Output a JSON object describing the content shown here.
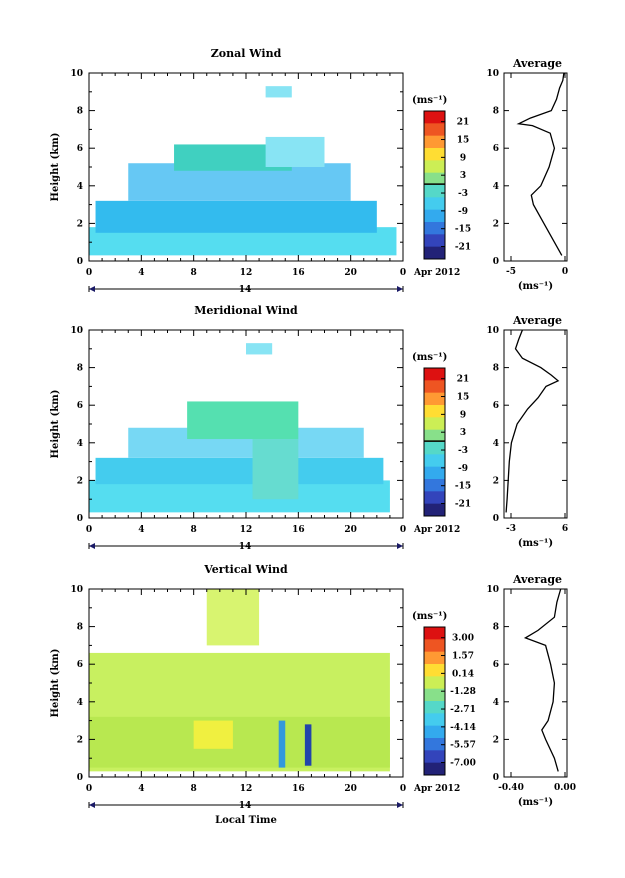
{
  "chart_data": [
    {
      "type": "heatmap",
      "title": "Zonal Wind",
      "ylabel": "Height (km)",
      "xlabel": "",
      "xticks": [
        "0",
        "4",
        "8",
        "12",
        "16",
        "20",
        "0"
      ],
      "yticks": [
        "0",
        "2",
        "4",
        "6",
        "8",
        "10"
      ],
      "xlim": [
        0,
        24
      ],
      "ylim": [
        0,
        10
      ],
      "date_label": "14",
      "date_right": "Apr 2012",
      "colorbar": {
        "unit": "(ms⁻¹)",
        "ticks": [
          "21",
          "15",
          "9",
          "3",
          "-3",
          "-9",
          "-15",
          "-21"
        ],
        "zero_line_index": 4
      },
      "fields": [
        {
          "x0": 0,
          "x1": 23.5,
          "y0": 0.3,
          "y1": 1.8,
          "color": "#55ddf0"
        },
        {
          "x0": 0.5,
          "x1": 22,
          "y0": 1.5,
          "y1": 3.2,
          "color": "#33bbee"
        },
        {
          "x0": 3,
          "x1": 20,
          "y0": 3.2,
          "y1": 5.2,
          "color": "#66c8f4"
        },
        {
          "x0": 6.5,
          "x1": 15.5,
          "y0": 4.8,
          "y1": 6.2,
          "color": "#40d0c0"
        },
        {
          "x0": 13.5,
          "x1": 18,
          "y0": 5,
          "y1": 6.6,
          "color": "#88e4f4"
        },
        {
          "x0": 13.5,
          "x1": 15.5,
          "y0": 8.7,
          "y1": 9.3,
          "color": "#88e4f4"
        }
      ],
      "average": {
        "title": "Average",
        "xlabel": "(ms⁻¹)",
        "xticks": [
          "-5",
          "0"
        ],
        "xlim": [
          -6,
          0
        ],
        "ylim": [
          0,
          10
        ],
        "profile": [
          [
            -0.5,
            0.3
          ],
          [
            -1.2,
            1
          ],
          [
            -2.2,
            2
          ],
          [
            -3.2,
            3
          ],
          [
            -3.4,
            3.5
          ],
          [
            -2.5,
            4
          ],
          [
            -1.7,
            5
          ],
          [
            -1.2,
            6
          ],
          [
            -1.6,
            6.8
          ],
          [
            -3.3,
            7.2
          ],
          [
            -4.6,
            7.3
          ],
          [
            -3.5,
            7.6
          ],
          [
            -1.5,
            8
          ],
          [
            -1.0,
            8.6
          ],
          [
            -0.7,
            9.2
          ],
          [
            -0.4,
            9.6
          ],
          [
            -0.3,
            10
          ]
        ]
      }
    },
    {
      "type": "heatmap",
      "title": "Meridional Wind",
      "ylabel": "Height (km)",
      "xlabel": "",
      "xticks": [
        "0",
        "4",
        "8",
        "12",
        "16",
        "20",
        "0"
      ],
      "yticks": [
        "0",
        "2",
        "4",
        "6",
        "8",
        "10"
      ],
      "xlim": [
        0,
        24
      ],
      "ylim": [
        0,
        10
      ],
      "date_label": "14",
      "date_right": "Apr 2012",
      "colorbar": {
        "unit": "(ms⁻¹)",
        "ticks": [
          "21",
          "15",
          "9",
          "3",
          "-3",
          "-9",
          "-15",
          "-21"
        ],
        "zero_line_index": 4
      },
      "fields": [
        {
          "x0": 0,
          "x1": 23,
          "y0": 0.3,
          "y1": 2.0,
          "color": "#55ddf0"
        },
        {
          "x0": 0.5,
          "x1": 22.5,
          "y0": 1.8,
          "y1": 3.2,
          "color": "#44ccee"
        },
        {
          "x0": 3,
          "x1": 21,
          "y0": 3.2,
          "y1": 4.8,
          "color": "#77d8f4"
        },
        {
          "x0": 7.5,
          "x1": 16,
          "y0": 4.2,
          "y1": 6.2,
          "color": "#55e0b0"
        },
        {
          "x0": 12.5,
          "x1": 16,
          "y0": 1.0,
          "y1": 4.2,
          "color": "#66dcd0"
        },
        {
          "x0": 12,
          "x1": 14,
          "y0": 8.7,
          "y1": 9.3,
          "color": "#88e4f4"
        }
      ],
      "average": {
        "title": "Average",
        "xlabel": "(ms⁻¹)",
        "xticks": [
          "-3",
          "6"
        ],
        "xlim": [
          -4,
          8
        ],
        "ylim": [
          0,
          10
        ],
        "profile": [
          [
            -3.6,
            0.3
          ],
          [
            -3.4,
            1
          ],
          [
            -3.2,
            2
          ],
          [
            -3.0,
            3
          ],
          [
            -2.6,
            4
          ],
          [
            -1.5,
            5
          ],
          [
            0.5,
            5.8
          ],
          [
            2.5,
            6.4
          ],
          [
            4.0,
            7.0
          ],
          [
            6.3,
            7.3
          ],
          [
            5.0,
            7.6
          ],
          [
            3.0,
            8.0
          ],
          [
            -0.5,
            8.5
          ],
          [
            -1.8,
            9
          ],
          [
            -1.2,
            9.5
          ],
          [
            -0.5,
            10
          ]
        ]
      }
    },
    {
      "type": "heatmap",
      "title": "Vertical Wind",
      "ylabel": "Height (km)",
      "xlabel": "Local Time",
      "xticks": [
        "0",
        "4",
        "8",
        "12",
        "16",
        "20",
        "0"
      ],
      "yticks": [
        "0",
        "2",
        "4",
        "6",
        "8",
        "10"
      ],
      "xlim": [
        0,
        24
      ],
      "ylim": [
        0,
        10
      ],
      "date_label": "14",
      "date_right": "Apr 2012",
      "colorbar": {
        "unit": "(ms⁻¹)",
        "ticks": [
          "3.00",
          "1.57",
          "0.14",
          "-1.28",
          "-2.71",
          "-4.14",
          "-5.57",
          "-7.00"
        ],
        "zero_line_index": 0
      },
      "fields": [
        {
          "x0": 0,
          "x1": 23,
          "y0": 0.3,
          "y1": 6.6,
          "color": "#c8f060"
        },
        {
          "x0": 0,
          "x1": 23,
          "y0": 0.5,
          "y1": 3.2,
          "color": "#b8e850"
        },
        {
          "x0": 8,
          "x1": 11,
          "y0": 1.5,
          "y1": 3.0,
          "color": "#f0f040"
        },
        {
          "x0": 14.5,
          "x1": 15,
          "y0": 0.5,
          "y1": 3.0,
          "color": "#3399dd"
        },
        {
          "x0": 16.5,
          "x1": 17,
          "y0": 0.6,
          "y1": 2.8,
          "color": "#2244aa"
        },
        {
          "x0": 9,
          "x1": 13,
          "y0": 7.0,
          "y1": 10.0,
          "color": "#d8f470"
        }
      ],
      "average": {
        "title": "Average",
        "xlabel": "(ms⁻¹)",
        "xticks": [
          "-0.40",
          "0.00"
        ],
        "xlim": [
          -0.45,
          0.05
        ],
        "ylim": [
          0,
          10
        ],
        "profile": [
          [
            -0.02,
            0.3
          ],
          [
            -0.05,
            1
          ],
          [
            -0.12,
            2
          ],
          [
            -0.15,
            2.5
          ],
          [
            -0.1,
            3
          ],
          [
            -0.06,
            4
          ],
          [
            -0.05,
            5
          ],
          [
            -0.08,
            6
          ],
          [
            -0.12,
            7
          ],
          [
            -0.28,
            7.4
          ],
          [
            -0.18,
            7.8
          ],
          [
            -0.05,
            8.5
          ],
          [
            -0.03,
            9.3
          ],
          [
            0.0,
            10
          ]
        ]
      }
    }
  ],
  "colorbar_colors": [
    "#dd1111",
    "#ee5522",
    "#ff9933",
    "#ffdd33",
    "#ccee55",
    "#88e08a",
    "#55d8c8",
    "#44ccee",
    "#33aaee",
    "#3377dd",
    "#3344bb",
    "#222277"
  ]
}
